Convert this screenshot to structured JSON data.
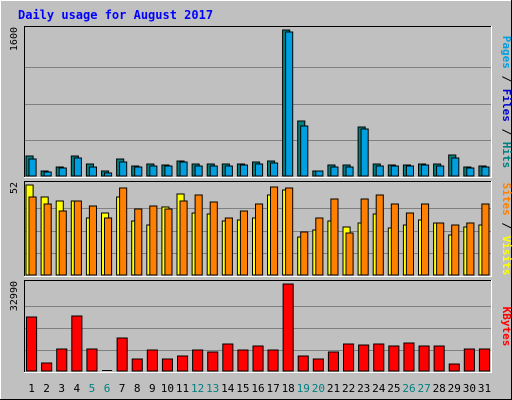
{
  "chart_data": {
    "type": "bar",
    "title": "Daily usage for August 2017",
    "categories": [
      "1",
      "2",
      "3",
      "4",
      "5",
      "6",
      "7",
      "8",
      "9",
      "10",
      "11",
      "12",
      "13",
      "14",
      "15",
      "16",
      "17",
      "18",
      "19",
      "20",
      "21",
      "22",
      "23",
      "24",
      "25",
      "26",
      "27",
      "28",
      "29",
      "30",
      "31"
    ],
    "weekend_days": [
      "5",
      "6",
      "12",
      "13",
      "19",
      "20",
      "26",
      "27"
    ],
    "grid": true,
    "panels": [
      {
        "id": "top",
        "max_label": "1600",
        "ylim": [
          0,
          1600
        ],
        "legend": [
          {
            "label": "Pages",
            "color": "#00a0e0"
          },
          {
            "label": "Files",
            "color": "#0000cc"
          },
          {
            "label": "Hits",
            "color": "#008080"
          }
        ],
        "series": [
          {
            "name": "Hits",
            "color": "#008080",
            "values": [
              220,
              50,
              100,
              215,
              130,
              50,
              190,
              115,
              130,
              125,
              165,
              135,
              130,
              130,
              130,
              150,
              160,
              1600,
              600,
              60,
              125,
              120,
              540,
              135,
              125,
              125,
              135,
              130,
              225,
              95,
              115
            ]
          },
          {
            "name": "Files",
            "color": "#00a0e0",
            "values": [
              185,
              40,
              90,
              195,
              100,
              30,
              155,
              95,
              115,
              105,
              150,
              115,
              115,
              110,
              120,
              135,
              145,
              1580,
              545,
              50,
              100,
              100,
              510,
              115,
              105,
              105,
              120,
              115,
              200,
              85,
              95
            ]
          }
        ]
      },
      {
        "id": "middle",
        "max_label": "52",
        "ylim": [
          0,
          52
        ],
        "legend": [
          {
            "label": "Sites",
            "color": "#ff8000"
          },
          {
            "label": "Visits",
            "color": "#ffff00"
          }
        ],
        "series": [
          {
            "name": "Visits",
            "color": "#ffff00",
            "values": [
              52,
              45,
              43,
              43,
              33,
              36,
              45,
              31,
              29,
              39,
              47,
              36,
              35,
              31,
              32,
              33,
              46,
              49,
              22,
              26,
              31,
              28,
              30,
              35,
              27,
              29,
              32,
              30,
              23,
              28,
              29
            ]
          },
          {
            "name": "Sites",
            "color": "#ff8000",
            "values": [
              45,
              41,
              37,
              43,
              40,
              33,
              50,
              38,
              40,
              38,
              43,
              46,
              42,
              33,
              37,
              41,
              51,
              50,
              25,
              33,
              44,
              24,
              44,
              46,
              41,
              36,
              41,
              30,
              29,
              30,
              41
            ]
          }
        ]
      },
      {
        "id": "bottom",
        "max_label": "32990",
        "ylim": [
          0,
          32990
        ],
        "legend": [
          {
            "label": "KBytes",
            "color": "#ff0000"
          }
        ],
        "series": [
          {
            "name": "KBytes",
            "color": "#ff0000",
            "values": [
              20500,
              3200,
              8500,
              21000,
              8300,
              0,
              12500,
              4500,
              8000,
              4500,
              5800,
              8000,
              7200,
              10200,
              7800,
              9400,
              7900,
              32990,
              5800,
              4400,
              7200,
              10300,
              10000,
              10300,
              9400,
              10500,
              9400,
              9600,
              2700,
              8400,
              8300
            ]
          }
        ]
      }
    ]
  },
  "colors": {
    "page_bg": "#c0c0c0",
    "plot_bg": "#c0c0c0",
    "gridline": "#808080",
    "title": "#0000ff",
    "weekday_label": "#000000",
    "weekend_label": "#008080"
  }
}
